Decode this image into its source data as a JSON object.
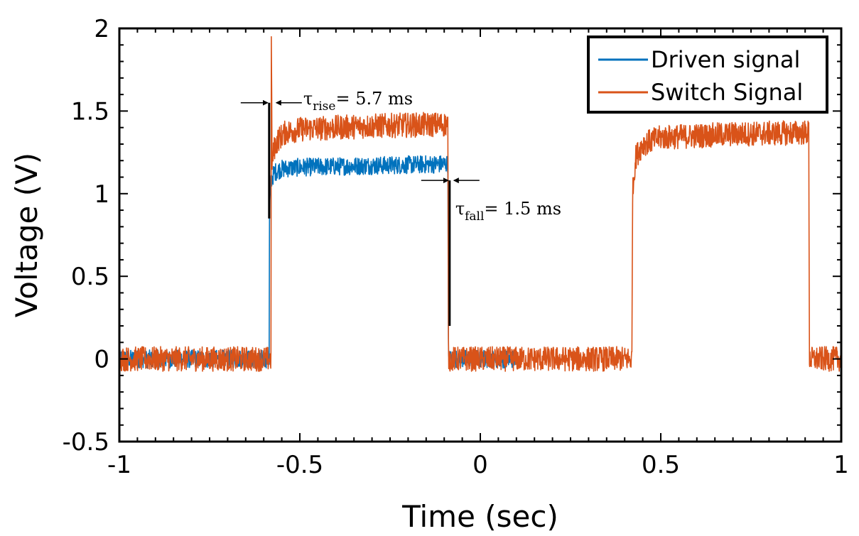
{
  "chart_data": {
    "type": "line",
    "title": "",
    "xlabel": "Time (sec)",
    "ylabel": "Voltage (V)",
    "xlim": [
      -1,
      1
    ],
    "ylim": [
      -0.5,
      2
    ],
    "xticks": [
      -1,
      -0.5,
      0,
      0.5,
      1
    ],
    "xtick_labels": [
      "-1",
      "-0.5",
      "0",
      "0.5",
      "1"
    ],
    "yticks": [
      -0.5,
      0,
      0.5,
      1,
      1.5,
      2
    ],
    "ytick_labels": [
      "-0.5",
      "0",
      "0.5",
      "1",
      "1.5",
      "2"
    ],
    "grid": false,
    "legend_position": "top-right",
    "series": [
      {
        "name": "Driven signal",
        "color": "#0072BD",
        "noise": 0.055,
        "points": [
          [
            -1,
            0
          ],
          [
            -0.585,
            0
          ],
          [
            -0.584,
            0.9
          ],
          [
            -0.58,
            1.08
          ],
          [
            -0.57,
            1.13
          ],
          [
            -0.55,
            1.15
          ],
          [
            -0.5,
            1.16
          ],
          [
            -0.3,
            1.17
          ],
          [
            -0.09,
            1.18
          ],
          [
            -0.088,
            0
          ],
          [
            0.1,
            0
          ]
        ]
      },
      {
        "name": "Switch Signal",
        "color": "#D95319",
        "noise": 0.075,
        "points": [
          [
            -1,
            0
          ],
          [
            -0.58,
            0
          ],
          [
            -0.579,
            1.95
          ],
          [
            -0.577,
            1.2
          ],
          [
            -0.57,
            1.28
          ],
          [
            -0.56,
            1.33
          ],
          [
            -0.54,
            1.37
          ],
          [
            -0.5,
            1.39
          ],
          [
            -0.3,
            1.41
          ],
          [
            -0.09,
            1.42
          ],
          [
            -0.088,
            0
          ],
          [
            0.42,
            0
          ],
          [
            0.422,
            1.0
          ],
          [
            0.43,
            1.22
          ],
          [
            0.45,
            1.3
          ],
          [
            0.5,
            1.34
          ],
          [
            0.7,
            1.36
          ],
          [
            0.91,
            1.37
          ],
          [
            0.912,
            0
          ],
          [
            1,
            0
          ]
        ]
      }
    ],
    "annotations": [
      {
        "symbol": "τ",
        "subscript": "rise",
        "text": "= 5.7 ms",
        "marker_x": -0.585,
        "marker_y": [
          0.85,
          1.55
        ],
        "y": 1.55
      },
      {
        "symbol": "τ",
        "subscript": "fall",
        "text": "= 1.5 ms",
        "marker_x": -0.085,
        "marker_y": [
          0.2,
          1.08
        ],
        "y": 1.08
      }
    ]
  }
}
